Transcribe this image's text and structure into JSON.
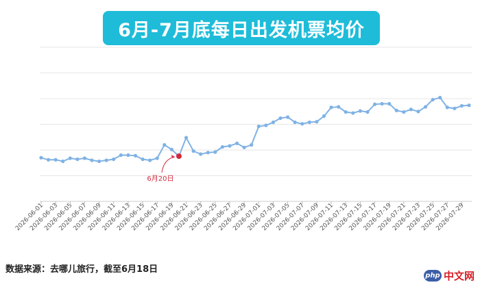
{
  "chart_data": {
    "type": "line",
    "title": "6月-7月底每日出发机票均价",
    "series_color": "#7fb2e5",
    "highlight_color": "#d12a3c",
    "grid": true,
    "y_gridlines": [
      250,
      500,
      750,
      1000,
      1250,
      1500
    ],
    "ylim": [
      0,
      1600
    ],
    "x_tick_labels": [
      "2026-06-01",
      "2026-06-03",
      "2026-06-05",
      "2026-06-07",
      "2026-06-09",
      "2026-06-11",
      "2026-06-13",
      "2026-06-15",
      "2026-06-17",
      "2026-06-19",
      "2026-06-21",
      "2026-06-23",
      "2026-06-25",
      "2026-06-27",
      "2026-06-29",
      "2026-07-01",
      "2026-07-03",
      "2026-07-05",
      "2026-07-07",
      "2026-07-09",
      "2026-07-11",
      "2026-07-13",
      "2026-07-15",
      "2026-07-17",
      "2026-07-19",
      "2026-07-21",
      "2026-07-23",
      "2026-07-25",
      "2026-07-27",
      "2026-07-29"
    ],
    "values": [
      425,
      405,
      405,
      390,
      420,
      410,
      420,
      400,
      390,
      400,
      410,
      450,
      450,
      445,
      410,
      400,
      420,
      550,
      505,
      440,
      620,
      490,
      460,
      475,
      480,
      530,
      540,
      565,
      525,
      550,
      730,
      740,
      770,
      810,
      820,
      770,
      755,
      770,
      775,
      830,
      915,
      920,
      870,
      860,
      880,
      870,
      945,
      950,
      950,
      885,
      870,
      895,
      875,
      920,
      990,
      1010,
      915,
      905,
      930,
      935
    ],
    "highlight": {
      "index": 19,
      "label": "6月20日"
    }
  },
  "source_note": "数据来源：去哪儿旅行，截至6月18日",
  "watermark": {
    "badge": "php",
    "text": "中文网"
  }
}
